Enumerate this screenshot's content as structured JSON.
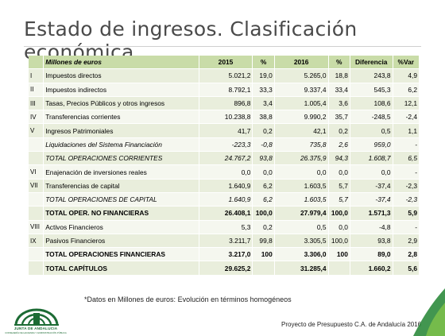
{
  "title": "Estado de ingresos. Clasificación económica",
  "table": {
    "header": {
      "num": "",
      "label": "Millones de euros",
      "y2015": "2015",
      "p2015": "%",
      "y2016": "2016",
      "p2016": "%",
      "diff": "Diferencia",
      "var": "%Var"
    },
    "rows": [
      {
        "num": "I",
        "label": "Impuestos directos",
        "y2015": "5.021,2",
        "p2015": "19,0",
        "y2016": "5.265,0",
        "p2016": "18,8",
        "diff": "243,8",
        "var": "4,9"
      },
      {
        "num": "II",
        "label": "Impuestos indirectos",
        "y2015": "8.792,1",
        "p2015": "33,3",
        "y2016": "9.337,4",
        "p2016": "33,4",
        "diff": "545,3",
        "var": "6,2"
      },
      {
        "num": "III",
        "label": "Tasas, Precios Públicos y otros ingresos",
        "y2015": "896,8",
        "p2015": "3,4",
        "y2016": "1.005,4",
        "p2016": "3,6",
        "diff": "108,6",
        "var": "12,1"
      },
      {
        "num": "IV",
        "label": "Transferencias corrientes",
        "y2015": "10.238,8",
        "p2015": "38,8",
        "y2016": "9.990,2",
        "p2016": "35,7",
        "diff": "-248,5",
        "var": "-2,4"
      },
      {
        "num": "V",
        "label": "Ingresos Patrimoniales",
        "y2015": "41,7",
        "p2015": "0,2",
        "y2016": "42,1",
        "p2016": "0,2",
        "diff": "0,5",
        "var": "1,1"
      },
      {
        "num": "",
        "label": "Liquidaciones del Sistema Financiación",
        "y2015": "-223,3",
        "p2015": "-0,8",
        "y2016": "735,8",
        "p2016": "2,6",
        "diff": "959,0",
        "var": "-"
      },
      {
        "num": "",
        "label": "TOTAL OPERACIONES CORRIENTES",
        "y2015": "24.767,2",
        "p2015": "93,8",
        "y2016": "26.375,9",
        "p2016": "94,3",
        "diff": "1.608,7",
        "var": "6,5"
      },
      {
        "num": "VI",
        "label": "Enajenación de inversiones reales",
        "y2015": "0,0",
        "p2015": "0,0",
        "y2016": "0,0",
        "p2016": "0,0",
        "diff": "0,0",
        "var": "-"
      },
      {
        "num": "VII",
        "label": "Transferencias de capital",
        "y2015": "1.640,9",
        "p2015": "6,2",
        "y2016": "1.603,5",
        "p2016": "5,7",
        "diff": "-37,4",
        "var": "-2,3"
      },
      {
        "num": "",
        "label": "TOTAL OPERACIONES DE CAPITAL",
        "y2015": "1.640,9",
        "p2015": "6,2",
        "y2016": "1.603,5",
        "p2016": "5,7",
        "diff": "-37,4",
        "var": "-2,3"
      },
      {
        "num": "",
        "label": "TOTAL OPER. NO FINANCIERAS",
        "y2015": "26.408,1",
        "p2015": "100,0",
        "y2016": "27.979,4",
        "p2016": "100,0",
        "diff": "1.571,3",
        "var": "5,9"
      },
      {
        "num": "VIII",
        "label": "Activos Financieros",
        "y2015": "5,3",
        "p2015": "0,2",
        "y2016": "0,5",
        "p2016": "0,0",
        "diff": "-4,8",
        "var": "-"
      },
      {
        "num": "IX",
        "label": "Pasivos Financieros",
        "y2015": "3.211,7",
        "p2015": "99,8",
        "y2016": "3.305,5",
        "p2016": "100,0",
        "diff": "93,8",
        "var": "2,9"
      },
      {
        "num": "",
        "label": "TOTAL OPERACIONES FINANCIERAS",
        "y2015": "3.217,0",
        "p2015": "100",
        "y2016": "3.306,0",
        "p2016": "100",
        "diff": "89,0",
        "var": "2,8"
      },
      {
        "num": "",
        "label": "TOTAL CAPÍTULOS",
        "y2015": "29.625,2",
        "p2015": "",
        "y2016": "31.285,4",
        "p2016": "",
        "diff": "1.660,2",
        "var": "5,6"
      }
    ]
  },
  "footnote": "*Datos en Millones de euros: Evolución en términos homogéneos",
  "footer": "Proyecto de Presupuesto C.A. de Andalucía 2016",
  "logo": {
    "text": "JUNTA DE ANDALUCIA",
    "subtext": "CONSEJERÍA DE HACIENDA Y ADMINISTRACIÓN PÚBLICA"
  },
  "colors": {
    "header": "#c9dca8",
    "row_odd": "#e9eedc",
    "row_even": "#f5f7ef",
    "brand_green": "#1c6b34"
  }
}
